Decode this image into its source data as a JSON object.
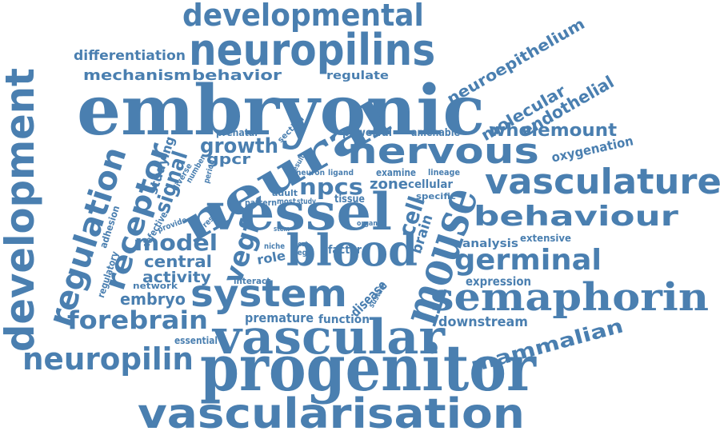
{
  "color": "#4a7fb0",
  "words": [
    {
      "id": "developmental",
      "text": "developmental"
    },
    {
      "id": "neuropilins",
      "text": "neuropilins"
    },
    {
      "id": "differentiation",
      "text": "differentiation"
    },
    {
      "id": "mechanism",
      "text": "mechanism"
    },
    {
      "id": "behavior",
      "text": "behavior"
    },
    {
      "id": "regulate",
      "text": "regulate"
    },
    {
      "id": "embryonic",
      "text": "embryonic"
    },
    {
      "id": "neuroepithelium",
      "text": "neuroepithelium"
    },
    {
      "id": "molecular",
      "text": "molecular"
    },
    {
      "id": "endothelial",
      "text": "endothelial"
    },
    {
      "id": "wholemount",
      "text": "wholemount"
    },
    {
      "id": "oxygenation",
      "text": "oxygenation"
    },
    {
      "id": "development",
      "text": "development"
    },
    {
      "id": "regulation",
      "text": "regulation"
    },
    {
      "id": "receptor",
      "text": "receptor"
    },
    {
      "id": "studying",
      "text": "studying"
    },
    {
      "id": "growth",
      "text": "growth"
    },
    {
      "id": "prenatal",
      "text": "prenatal"
    },
    {
      "id": "section",
      "text": "section"
    },
    {
      "id": "powerful",
      "text": "powerful"
    },
    {
      "id": "amenable",
      "text": "amenable"
    },
    {
      "id": "neural",
      "text": "neural"
    },
    {
      "id": "nervous",
      "text": "nervous"
    },
    {
      "id": "vasculature",
      "text": "vasculature"
    },
    {
      "id": "gpcr",
      "text": "gpcr"
    },
    {
      "id": "signal",
      "text": "signal"
    },
    {
      "id": "diverse",
      "text": "diverse"
    },
    {
      "id": "number",
      "text": "number"
    },
    {
      "id": "period",
      "text": "period"
    },
    {
      "id": "result",
      "text": "result"
    },
    {
      "id": "neuron",
      "text": "neuron"
    },
    {
      "id": "ligand",
      "text": "ligand"
    },
    {
      "id": "examine",
      "text": "examine"
    },
    {
      "id": "lineage",
      "text": "lineage"
    },
    {
      "id": "npcs",
      "text": "npcs"
    },
    {
      "id": "zone",
      "text": "zone"
    },
    {
      "id": "cellular",
      "text": "cellular"
    },
    {
      "id": "specific",
      "text": "specific"
    },
    {
      "id": "adult",
      "text": "adult"
    },
    {
      "id": "tissue",
      "text": "tissue"
    },
    {
      "id": "defective",
      "text": "defective"
    },
    {
      "id": "provide",
      "text": "provide"
    },
    {
      "id": "reside",
      "text": "reside"
    },
    {
      "id": "pattern",
      "text": "pattern"
    },
    {
      "id": "most",
      "text": "most"
    },
    {
      "id": "study",
      "text": "study"
    },
    {
      "id": "adhesion",
      "text": "adhesion"
    },
    {
      "id": "vessel",
      "text": "vessel"
    },
    {
      "id": "cell",
      "text": "cell"
    },
    {
      "id": "brain",
      "text": "brain"
    },
    {
      "id": "behaviour",
      "text": "behaviour"
    },
    {
      "id": "mouse",
      "text": "mouse"
    },
    {
      "id": "stem",
      "text": "stem"
    },
    {
      "id": "organ",
      "text": "organ"
    },
    {
      "id": "model",
      "text": "model"
    },
    {
      "id": "vegf",
      "text": "vegf"
    },
    {
      "id": "niche",
      "text": "niche"
    },
    {
      "id": "best",
      "text": "best"
    },
    {
      "id": "vegfr",
      "text": "vegfr"
    },
    {
      "id": "factor",
      "text": "factor"
    },
    {
      "id": "analysis",
      "text": "analysis"
    },
    {
      "id": "extensive",
      "text": "extensive"
    },
    {
      "id": "regulatory",
      "text": "regulatory"
    },
    {
      "id": "central",
      "text": "central"
    },
    {
      "id": "role",
      "text": "role"
    },
    {
      "id": "blood",
      "text": "blood"
    },
    {
      "id": "germinal",
      "text": "germinal"
    },
    {
      "id": "activity",
      "text": "activity"
    },
    {
      "id": "interact",
      "text": "interact"
    },
    {
      "id": "expression",
      "text": "expression"
    },
    {
      "id": "network",
      "text": "network"
    },
    {
      "id": "disease",
      "text": "disease"
    },
    {
      "id": "sustain",
      "text": "sustain"
    },
    {
      "id": "embryo",
      "text": "embryo"
    },
    {
      "id": "system",
      "text": "system"
    },
    {
      "id": "semaphorin",
      "text": "semaphorin"
    },
    {
      "id": "premature",
      "text": "premature"
    },
    {
      "id": "function",
      "text": "function"
    },
    {
      "id": "downstream",
      "text": "downstream"
    },
    {
      "id": "forebrain",
      "text": "forebrain"
    },
    {
      "id": "mammalian",
      "text": "mammalian"
    },
    {
      "id": "essential",
      "text": "essential"
    },
    {
      "id": "vascular",
      "text": "vascular"
    },
    {
      "id": "neuropilin",
      "text": "neuropilin"
    },
    {
      "id": "progenitor",
      "text": "progenitor"
    },
    {
      "id": "vascularisation",
      "text": "vascularisation"
    }
  ]
}
